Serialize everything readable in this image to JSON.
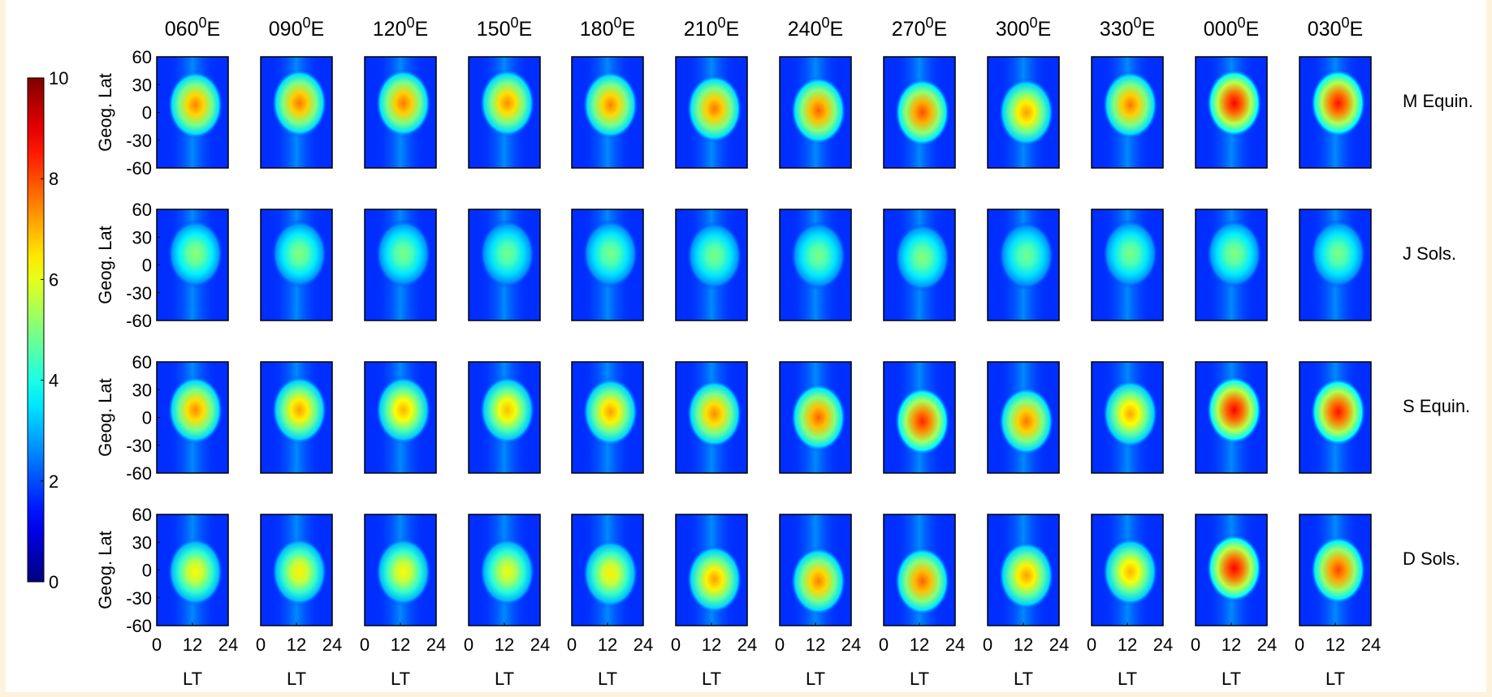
{
  "chart_data": {
    "type": "heatmap",
    "colorbar": {
      "colormap": "jet",
      "range": [
        0,
        10
      ],
      "ticks": [
        "0",
        "2",
        "4",
        "6",
        "8",
        "10"
      ]
    },
    "columns": [
      "060",
      "090",
      "120",
      "150",
      "180",
      "210",
      "240",
      "270",
      "300",
      "330",
      "000",
      "030"
    ],
    "column_unit_sup": "0",
    "column_unit_suffix": "E",
    "rows": [
      "M  Equin.",
      "J  Sols.",
      "S  Equin.",
      "D  Sols."
    ],
    "ylabel": "Geog. Lat",
    "yticks": [
      "60",
      "30",
      "0",
      "-30",
      "-60"
    ],
    "yrange": [
      -60,
      60
    ],
    "xlabel": "LT",
    "xticks": [
      "0",
      "12",
      "24"
    ],
    "xrange": [
      0,
      24
    ],
    "background_level": 1.7,
    "blob_intensity": [
      [
        7.5,
        7.6,
        7.6,
        7.4,
        7.5,
        7.6,
        7.8,
        8.0,
        7.2,
        7.6,
        8.8,
        8.6
      ],
      [
        5.2,
        5.1,
        5.0,
        4.9,
        5.0,
        5.0,
        5.0,
        5.1,
        4.9,
        5.0,
        5.1,
        5.0
      ],
      [
        7.4,
        7.2,
        7.0,
        6.9,
        7.2,
        7.4,
        7.8,
        8.4,
        7.6,
        7.1,
        8.8,
        8.6
      ],
      [
        6.3,
        6.4,
        6.3,
        6.1,
        6.4,
        7.2,
        7.5,
        7.8,
        7.2,
        7.0,
        8.8,
        8.1
      ]
    ],
    "blob_center_lat": [
      [
        8,
        10,
        10,
        10,
        8,
        4,
        2,
        0,
        0,
        8,
        10,
        10
      ],
      [
        12,
        12,
        12,
        12,
        12,
        10,
        10,
        8,
        10,
        12,
        12,
        12
      ],
      [
        8,
        8,
        8,
        8,
        6,
        4,
        0,
        -4,
        -4,
        4,
        8,
        6
      ],
      [
        -2,
        -2,
        -2,
        -2,
        -4,
        -10,
        -12,
        -12,
        -6,
        -2,
        2,
        0
      ]
    ]
  }
}
